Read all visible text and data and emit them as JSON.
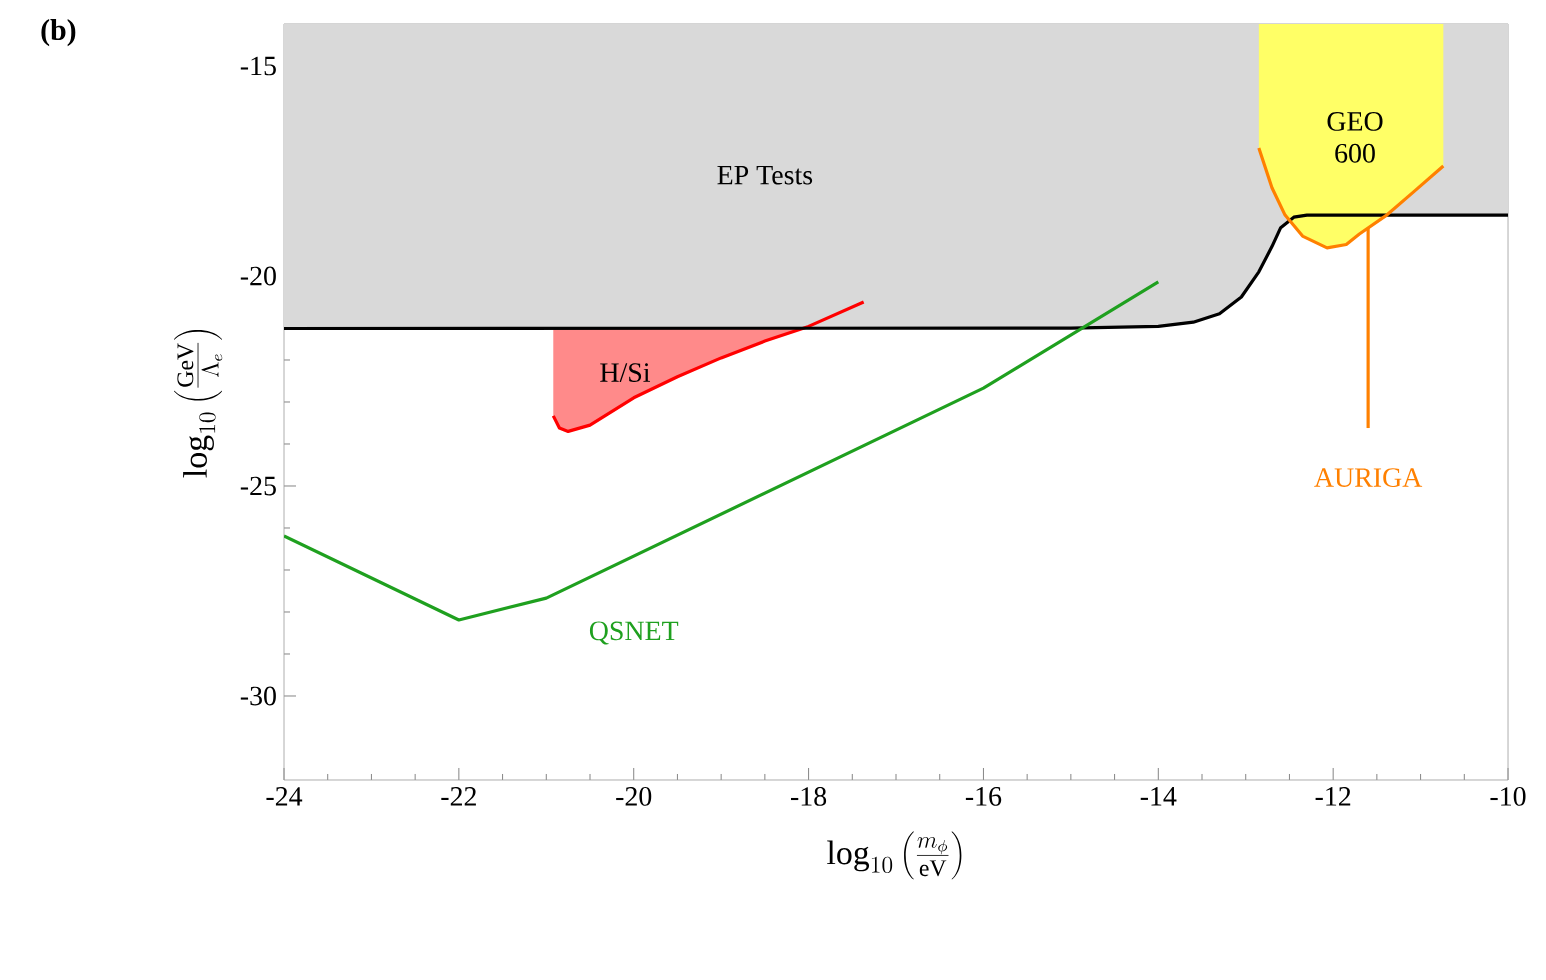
{
  "chart_data": {
    "type": "line",
    "title": "(b)",
    "xlabel": "\\log_{10}\\left(\\frac{m_\\phi}{\\mathrm{eV}}\\right)",
    "ylabel": "\\log_{10}\\left(\\frac{\\mathrm{GeV}}{\\Lambda_e}\\right)",
    "xlim": [
      -24,
      -10
    ],
    "ylim": [
      -32,
      -14
    ],
    "xticks": [
      -24,
      -22,
      -20,
      -18,
      -16,
      -14,
      -12,
      -10
    ],
    "yticks": [
      -30,
      -25,
      -20,
      -15
    ],
    "series": [
      {
        "type": "area",
        "color": "#000000",
        "colors": [
          "#d9d9d9",
          "#d9d9d9",
          "#d9d9d9",
          "#d9d9d9",
          "#d9d9d9",
          "#d9d9d9",
          "#d9d9d9",
          "#d9d9d9",
          "#d9d9d9",
          "#d9d9d9",
          "#d9d9d9",
          "#d9d9d9"
        ],
        "x": [
          -24,
          -15,
          -14,
          -13.6,
          -13.3,
          -13.05,
          -12.85,
          -12.7,
          -12.6,
          -12.45,
          -12.3,
          -10
        ],
        "values": [
          -21.25,
          -21.24,
          -21.2,
          -21.1,
          -20.9,
          -20.5,
          -19.9,
          -19.3,
          -18.85,
          -18.6,
          -18.55,
          -18.55
        ]
      },
      {
        "type": "area",
        "color": "#ff8000",
        "colors": [
          "#ffff66",
          "#ffff66",
          "#ffff66",
          "#ffff66",
          "#ffff66",
          "#ffff66",
          "#ffff66",
          "#ffff66",
          "#ffff66",
          "#ffff66"
        ],
        "x": [
          -12.85,
          -12.7,
          -12.55,
          -12.35,
          -12.07,
          -11.85,
          -11.7,
          -11.4,
          -11.07,
          -10.74
        ],
        "values": [
          -16.95,
          -17.9,
          -18.55,
          -19.05,
          -19.33,
          -19.25,
          -19.0,
          -18.57,
          -17.98,
          -17.38
        ]
      },
      {
        "type": "area",
        "color": "#ff0000",
        "colors": [
          "#ff8a8a",
          "#ff8a8a",
          "#ff8a8a",
          "#ff8a8a",
          "#ff8a8a",
          "#ff8a8a",
          "#ff8a8a",
          "#ff8a8a",
          "#ff8a8a",
          "#ff8a8a"
        ],
        "x": [
          -20.92,
          -20.85,
          -20.75,
          -20.5,
          -20,
          -19.5,
          -19,
          -18.5,
          -18,
          -17.37
        ],
        "values": [
          -23.33,
          -23.62,
          -23.7,
          -23.55,
          -22.9,
          -22.4,
          -21.95,
          -21.55,
          -21.2,
          -20.62
        ]
      },
      {
        "color": "#1fa01f",
        "x": [
          -24,
          -22,
          -21,
          -16,
          -14
        ],
        "values": [
          -26.19,
          -28.19,
          -27.67,
          -22.67,
          -20.14
        ]
      },
      {
        "color": "#ff8000",
        "x": [
          -11.6,
          -11.6
        ],
        "values": [
          -18.86,
          -23.62
        ]
      }
    ],
    "annotations": [
      "EP Tests",
      "H/Si",
      "QSNET",
      "GEO 600",
      "AURIGA"
    ],
    "grid": false
  }
}
